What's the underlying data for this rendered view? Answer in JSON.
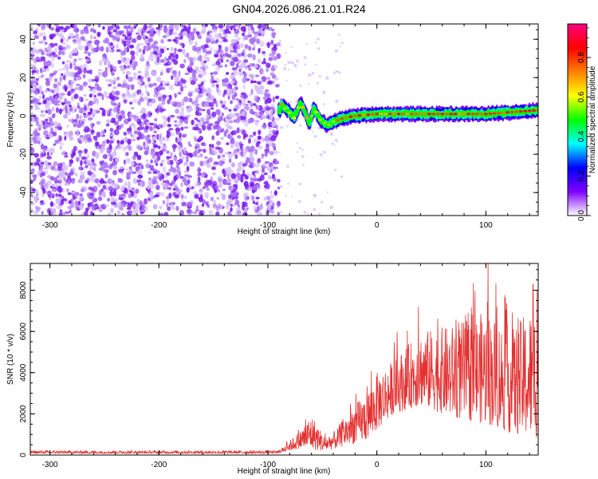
{
  "title": "GN04.2026.086.21.01.R24",
  "chart_data": [
    {
      "type": "heatmap",
      "name": "spectrogram",
      "xlabel": "Height of straight line (km)",
      "ylabel": "Frequency (Hz)",
      "xlim": [
        -318,
        148
      ],
      "ylim": [
        -52,
        48
      ],
      "xticks": [
        -300,
        -200,
        -100,
        0,
        100
      ],
      "yticks": [
        -40,
        -20,
        0,
        20,
        40
      ],
      "noise_region": [
        -318,
        -90
      ],
      "signal_start": -90,
      "signal_trace": [
        {
          "x": -88,
          "y": 6
        },
        {
          "x": -82,
          "y": 3
        },
        {
          "x": -76,
          "y": -1
        },
        {
          "x": -70,
          "y": 7
        },
        {
          "x": -66,
          "y": 2
        },
        {
          "x": -62,
          "y": -4
        },
        {
          "x": -58,
          "y": 4
        },
        {
          "x": -52,
          "y": -2
        },
        {
          "x": -45,
          "y": -5
        },
        {
          "x": -40,
          "y": -3
        },
        {
          "x": -30,
          "y": -1
        },
        {
          "x": -20,
          "y": 0
        },
        {
          "x": 0,
          "y": 1
        },
        {
          "x": 50,
          "y": 1
        },
        {
          "x": 100,
          "y": 1
        },
        {
          "x": 148,
          "y": 3
        }
      ],
      "colorbar": {
        "label": "Normalized spectral amplitude",
        "ticks": [
          0.0,
          0.2,
          0.4,
          0.6,
          0.8
        ],
        "tick_labels": [
          "0.0",
          "0.2",
          "0.4",
          "0.6",
          "0.8"
        ],
        "range": [
          0,
          0.97
        ],
        "colors": [
          "#ffffff",
          "#7f00ff",
          "#0000ff",
          "#00ffff",
          "#00ff00",
          "#ffff00",
          "#ff8000",
          "#ff0000",
          "#ff0080"
        ]
      }
    },
    {
      "type": "line",
      "name": "snr",
      "xlabel": "Height of straight line (km)",
      "ylabel": "SNR (10 * v/v)",
      "xlim": [
        -318,
        148
      ],
      "ylim": [
        0,
        9300
      ],
      "xticks": [
        -300,
        -200,
        -100,
        0,
        100
      ],
      "yticks": [
        0,
        2000,
        4000,
        6000,
        8000
      ],
      "color": "#e33030",
      "envelope": [
        {
          "x": -318,
          "lo": 80,
          "hi": 220
        },
        {
          "x": -90,
          "lo": 80,
          "hi": 220
        },
        {
          "x": -72,
          "lo": 300,
          "hi": 1100
        },
        {
          "x": -60,
          "lo": 250,
          "hi": 2000
        },
        {
          "x": -48,
          "lo": 200,
          "hi": 900
        },
        {
          "x": -38,
          "lo": 300,
          "hi": 1200
        },
        {
          "x": -25,
          "lo": 500,
          "hi": 2200
        },
        {
          "x": -10,
          "lo": 700,
          "hi": 3000
        },
        {
          "x": 0,
          "lo": 1200,
          "hi": 4000
        },
        {
          "x": 15,
          "lo": 2000,
          "hi": 4600
        },
        {
          "x": 40,
          "lo": 2400,
          "hi": 6000
        },
        {
          "x": 70,
          "lo": 1800,
          "hi": 6300
        },
        {
          "x": 100,
          "lo": 1500,
          "hi": 7000
        },
        {
          "x": 125,
          "lo": 1000,
          "hi": 6200
        },
        {
          "x": 148,
          "lo": 800,
          "hi": 7500
        }
      ],
      "peaks": [
        {
          "x": 102,
          "y": 9300
        },
        {
          "x": 143,
          "y": 8300
        },
        {
          "x": 147,
          "y": 8000
        },
        {
          "x": 38,
          "y": 7200
        },
        {
          "x": 110,
          "y": 7200
        }
      ]
    }
  ]
}
